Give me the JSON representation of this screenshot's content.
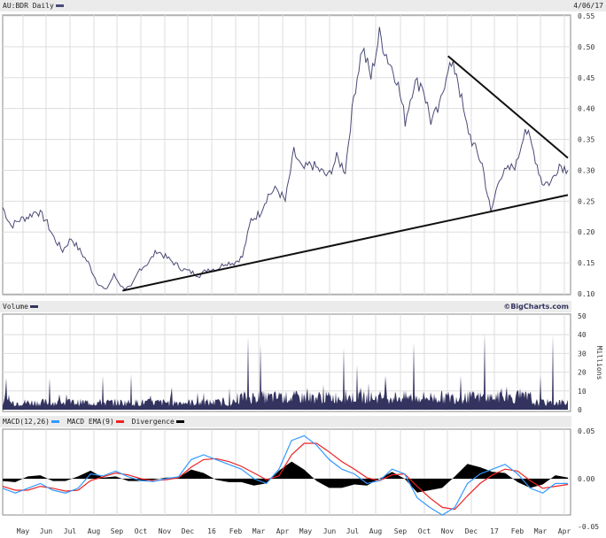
{
  "chart_data": [
    {
      "type": "line",
      "title": "AU:BDR Daily",
      "date": "4/06/17",
      "ylim": [
        0.1,
        0.55
      ],
      "yticks": [
        "0.55",
        "0.50",
        "0.45",
        "0.40",
        "0.35",
        "0.30",
        "0.25",
        "0.20",
        "0.15",
        "0.10"
      ],
      "color": "#4a4a78",
      "values": [
        0.24,
        0.21,
        0.22,
        0.225,
        0.235,
        0.22,
        0.19,
        0.17,
        0.19,
        0.17,
        0.15,
        0.12,
        0.105,
        0.13,
        0.11,
        0.11,
        0.14,
        0.15,
        0.17,
        0.16,
        0.15,
        0.14,
        0.135,
        0.13,
        0.14,
        0.14,
        0.15,
        0.15,
        0.16,
        0.22,
        0.23,
        0.26,
        0.27,
        0.25,
        0.33,
        0.3,
        0.31,
        0.3,
        0.29,
        0.32,
        0.3,
        0.42,
        0.5,
        0.45,
        0.52,
        0.48,
        0.45,
        0.38,
        0.44,
        0.44,
        0.38,
        0.4,
        0.47,
        0.46,
        0.38,
        0.34,
        0.31,
        0.23,
        0.29,
        0.3,
        0.31,
        0.37,
        0.33,
        0.28,
        0.28,
        0.31,
        0.3
      ],
      "trendlines": [
        {
          "from": [
            14,
            0.105
          ],
          "to": [
            66,
            0.26
          ]
        },
        {
          "from": [
            52,
            0.485
          ],
          "to": [
            66,
            0.32
          ]
        }
      ]
    },
    {
      "type": "bar",
      "title": "Volume",
      "credit": "©BigCharts.com",
      "ylabel": "Millions",
      "ylim": [
        0,
        50
      ],
      "yticks": [
        "50",
        "40",
        "30",
        "20",
        "10",
        "0"
      ],
      "color": "#33335f",
      "spikes": [
        [
          7,
          17
        ],
        [
          56,
          17
        ],
        [
          116,
          18
        ],
        [
          148,
          19
        ],
        [
          194,
          12
        ],
        [
          280,
          39
        ],
        [
          294,
          35
        ],
        [
          388,
          33
        ],
        [
          403,
          24
        ],
        [
          467,
          36
        ],
        [
          547,
          41
        ],
        [
          624,
          40
        ],
        [
          610,
          18
        ],
        [
          520,
          18
        ],
        [
          435,
          18
        ]
      ]
    },
    {
      "type": "line",
      "title": "MACD(12,26)",
      "ylim": [
        -0.05,
        0.05
      ],
      "yticks": [
        "0.05",
        "0.00",
        "-0.05"
      ],
      "series": [
        {
          "name": "MACD EMA(9)",
          "color": "#3399ff"
        },
        {
          "name": "Divergence",
          "color": "#000000"
        }
      ],
      "macd_name": "MACD(12,26)",
      "macd": [
        -0.01,
        -0.015,
        -0.01,
        -0.005,
        -0.012,
        -0.015,
        -0.01,
        0.005,
        0.003,
        0.008,
        0.002,
        -0.002,
        -0.003,
        0,
        0.002,
        0.02,
        0.025,
        0.02,
        0.015,
        0.01,
        0,
        -0.005,
        0.01,
        0.04,
        0.045,
        0.035,
        0.02,
        0.01,
        0.005,
        -0.005,
        -0.002,
        0.01,
        0.005,
        -0.02,
        -0.03,
        -0.038,
        -0.03,
        -0.005,
        0.005,
        0.01,
        0.015,
        0.005,
        -0.01,
        -0.015,
        -0.005,
        -0.005
      ],
      "signal": [
        -0.008,
        -0.012,
        -0.012,
        -0.008,
        -0.01,
        -0.013,
        -0.012,
        -0.002,
        0.002,
        0.006,
        0.004,
        0,
        -0.002,
        -0.001,
        0.001,
        0.012,
        0.02,
        0.021,
        0.018,
        0.013,
        0.006,
        -0.001,
        0.003,
        0.025,
        0.037,
        0.037,
        0.028,
        0.018,
        0.01,
        0.001,
        -0.002,
        0.004,
        0.005,
        -0.008,
        -0.02,
        -0.03,
        -0.032,
        -0.018,
        -0.005,
        0.004,
        0.01,
        0.008,
        -0.002,
        -0.01,
        -0.008,
        -0.006
      ],
      "ema_color": "#ee2222"
    }
  ],
  "legend": {
    "price": "AU:BDR Daily",
    "volume": "Volume",
    "macd": "MACD(12,26)",
    "ema": "MACD EMA(9)",
    "div": "Divergence"
  },
  "xticks": [
    "May",
    "Jun",
    "Jul",
    "Aug",
    "Sep",
    "Oct",
    "Nov",
    "Dec",
    "16",
    "Feb",
    "Mar",
    "Apr",
    "May",
    "Jun",
    "Jul",
    "Aug",
    "Sep",
    "Oct",
    "Nov",
    "Dec",
    "17",
    "Feb",
    "Mar",
    "Apr"
  ]
}
